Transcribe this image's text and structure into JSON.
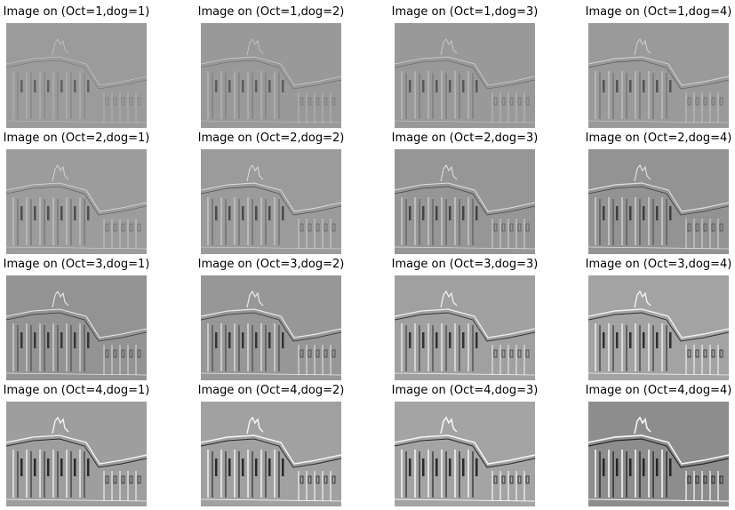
{
  "panels": [
    {
      "title": "Image on (Oct=1,dog=1)",
      "octave": 1,
      "dog": 1,
      "tone": "#9b9b9b"
    },
    {
      "title": "Image on (Oct=1,dog=2)",
      "octave": 1,
      "dog": 2,
      "tone": "#999999"
    },
    {
      "title": "Image on (Oct=1,dog=3)",
      "octave": 1,
      "dog": 3,
      "tone": "#999999"
    },
    {
      "title": "Image on (Oct=1,dog=4)",
      "octave": 1,
      "dog": 4,
      "tone": "#9a9a9a"
    },
    {
      "title": "Image on (Oct=2,dog=1)",
      "octave": 2,
      "dog": 1,
      "tone": "#9c9c9c"
    },
    {
      "title": "Image on (Oct=2,dog=2)",
      "octave": 2,
      "dog": 2,
      "tone": "#9b9b9b"
    },
    {
      "title": "Image on (Oct=2,dog=3)",
      "octave": 2,
      "dog": 3,
      "tone": "#969696"
    },
    {
      "title": "Image on (Oct=2,dog=4)",
      "octave": 2,
      "dog": 4,
      "tone": "#939393"
    },
    {
      "title": "Image on (Oct=3,dog=1)",
      "octave": 3,
      "dog": 1,
      "tone": "#939393"
    },
    {
      "title": "Image on (Oct=3,dog=2)",
      "octave": 3,
      "dog": 2,
      "tone": "#979797"
    },
    {
      "title": "Image on (Oct=3,dog=3)",
      "octave": 3,
      "dog": 3,
      "tone": "#a0a0a0"
    },
    {
      "title": "Image on (Oct=3,dog=4)",
      "octave": 3,
      "dog": 4,
      "tone": "#a3a3a3"
    },
    {
      "title": "Image on (Oct=4,dog=1)",
      "octave": 4,
      "dog": 1,
      "tone": "#9e9e9e"
    },
    {
      "title": "Image on (Oct=4,dog=2)",
      "octave": 4,
      "dog": 2,
      "tone": "#a1a1a1"
    },
    {
      "title": "Image on (Oct=4,dog=3)",
      "octave": 4,
      "dog": 3,
      "tone": "#a4a4a4"
    },
    {
      "title": "Image on (Oct=4,dog=4)",
      "octave": 4,
      "dog": 4,
      "tone": "#8d8d8d"
    }
  ]
}
